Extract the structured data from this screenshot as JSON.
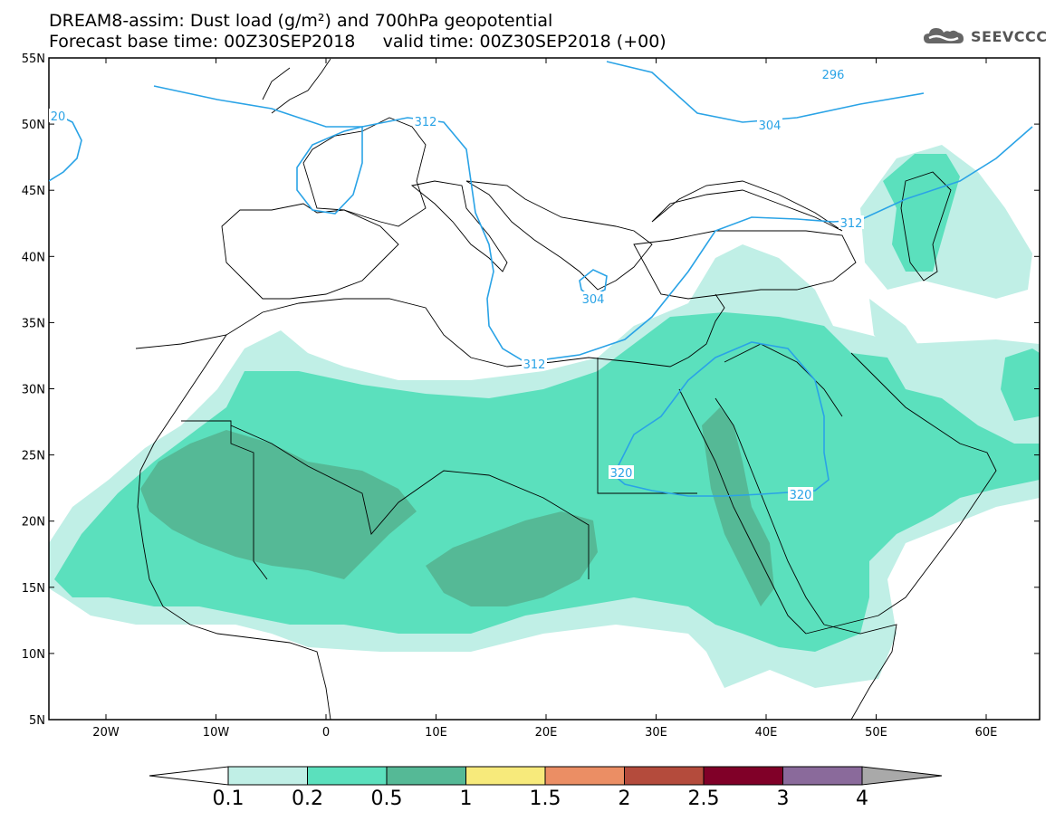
{
  "header": {
    "line1": "DREAM8-assim: Dust load (g/m²) and 700hPa geopotential",
    "line2": "Forecast base time: 00Z30SEP2018     valid time: 00Z30SEP2018 (+00)"
  },
  "logo": {
    "text": "SEEVCCC",
    "icon": "cloud-icon"
  },
  "axes": {
    "lat_labels": [
      "55N",
      "50N",
      "45N",
      "40N",
      "35N",
      "30N",
      "25N",
      "20N",
      "15N",
      "10N",
      "5N"
    ],
    "lon_labels": [
      "20W",
      "10W",
      "0",
      "10E",
      "20E",
      "30E",
      "40E",
      "50E",
      "60E"
    ]
  },
  "contours": {
    "color": "#2aa3e6",
    "labels": [
      "296",
      "304",
      "312",
      "312",
      "312",
      "304",
      "320",
      "320",
      "20"
    ]
  },
  "colorbar": {
    "labels": [
      "0.1",
      "0.2",
      "0.5",
      "1",
      "1.5",
      "2",
      "2.5",
      "3",
      "4"
    ],
    "colors": [
      "#c0efe6",
      "#5be0bd",
      "#55b996",
      "#f7ea7b",
      "#eb8e64",
      "#b44b3c",
      "#800028",
      "#8a6a9b",
      "#a9a9a9"
    ]
  }
}
